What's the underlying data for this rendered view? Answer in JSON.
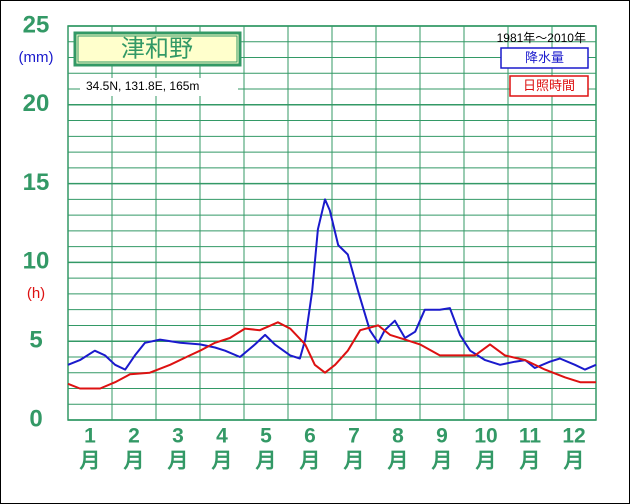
{
  "chart_data": {
    "type": "line",
    "title": "津和野",
    "subtitle": "34.5N,  131.8E,  165m",
    "period": "1981年〜2010年",
    "y_unit_primary": "(mm)",
    "y_unit_secondary": "(h)",
    "categories": [
      "1",
      "2",
      "3",
      "4",
      "5",
      "6",
      "7",
      "8",
      "9",
      "10",
      "11",
      "12"
    ],
    "category_suffix": "月",
    "xlim": [
      0.5,
      12.5
    ],
    "xgrid": [
      0.5,
      1.5,
      2.5,
      3.5,
      4.5,
      5.5,
      6.5,
      7.5,
      8.5,
      9.5,
      10.5,
      11.5,
      12.5
    ],
    "ylim": [
      0,
      25
    ],
    "yticks": [
      0,
      5,
      10,
      15,
      20,
      25
    ],
    "minor_yticks": [
      1,
      2,
      3,
      4,
      6,
      7,
      8,
      9,
      11,
      12,
      13,
      14,
      16,
      17,
      18,
      19,
      21,
      22,
      23,
      24
    ],
    "grid": true,
    "grid_color": "#339966",
    "series": [
      {
        "name": "降水量",
        "color": "#1a1acc",
        "x": [
          0.5,
          0.77,
          1.11,
          1.34,
          1.57,
          1.8,
          2.02,
          2.25,
          2.59,
          3.05,
          3.5,
          3.84,
          4.07,
          4.41,
          4.75,
          4.98,
          5.2,
          5.55,
          5.77,
          5.89,
          6.05,
          6.18,
          6.34,
          6.45,
          6.64,
          6.86,
          7.09,
          7.36,
          7.55,
          7.7,
          7.93,
          8.16,
          8.39,
          8.61,
          8.95,
          9.18,
          9.41,
          9.64,
          9.98,
          10.32,
          10.66,
          10.89,
          11.11,
          11.45,
          11.68,
          12.02,
          12.25,
          12.5
        ],
        "values": [
          3.5,
          3.8,
          4.4,
          4.1,
          3.5,
          3.2,
          4.1,
          4.9,
          5.1,
          4.9,
          4.8,
          4.6,
          4.4,
          4.0,
          4.8,
          5.4,
          4.8,
          4.1,
          3.9,
          5.1,
          8.2,
          12.1,
          14.0,
          13.3,
          11.1,
          10.5,
          8.2,
          5.7,
          4.9,
          5.7,
          6.3,
          5.2,
          5.6,
          7.0,
          7.0,
          7.1,
          5.4,
          4.4,
          3.8,
          3.5,
          3.7,
          3.8,
          3.3,
          3.7,
          3.9,
          3.5,
          3.2,
          3.5
        ]
      },
      {
        "name": "日照時間",
        "color": "#dd1111",
        "x": [
          0.5,
          0.77,
          1.23,
          1.57,
          1.91,
          2.36,
          2.82,
          3.27,
          3.5,
          3.84,
          4.18,
          4.52,
          4.86,
          5.27,
          5.55,
          5.89,
          6.11,
          6.34,
          6.57,
          6.86,
          7.14,
          7.55,
          7.82,
          8.16,
          8.5,
          8.95,
          9.41,
          9.75,
          10.09,
          10.43,
          10.89,
          11.34,
          11.8,
          12.14,
          12.5
        ],
        "values": [
          2.3,
          2.0,
          2.0,
          2.4,
          2.9,
          3.0,
          3.5,
          4.1,
          4.4,
          4.9,
          5.2,
          5.8,
          5.7,
          6.2,
          5.8,
          4.8,
          3.5,
          3.0,
          3.5,
          4.4,
          5.7,
          6.0,
          5.4,
          5.1,
          4.8,
          4.1,
          4.1,
          4.1,
          4.8,
          4.1,
          3.8,
          3.2,
          2.7,
          2.4,
          2.4
        ]
      }
    ]
  }
}
